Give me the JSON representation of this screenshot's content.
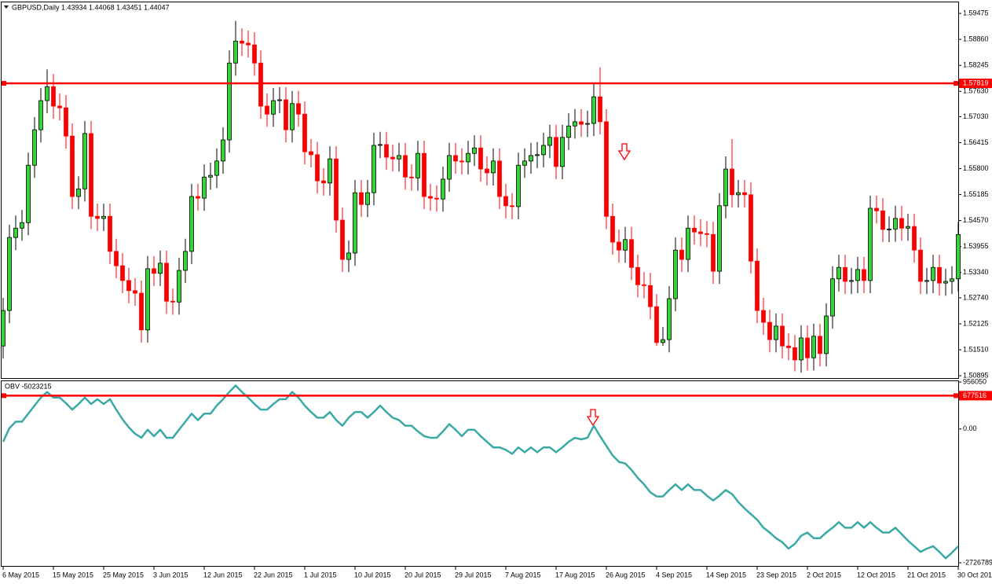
{
  "chart_data": [
    {
      "type": "candlestick",
      "title": "GBPUSD,Daily  1.43934 1.44068 1.43451 1.44047",
      "categories": [
        "6 May 2015",
        null,
        null,
        null,
        null,
        null,
        null,
        null,
        "15 May 2015",
        null,
        null,
        null,
        null,
        null,
        null,
        null,
        "25 May 2015",
        null,
        null,
        null,
        null,
        null,
        null,
        null,
        "3 Jun 2015",
        null,
        null,
        null,
        null,
        null,
        null,
        null,
        "12 Jun 2015",
        null,
        null,
        null,
        null,
        null,
        null,
        null,
        "22 Jun 2015",
        null,
        null,
        null,
        null,
        null,
        null,
        null,
        "1 Jul 2015",
        null,
        null,
        null,
        null,
        null,
        null,
        null,
        "10 Jul 2015",
        null,
        null,
        null,
        null,
        null,
        null,
        null,
        "20 Jul 2015",
        null,
        null,
        null,
        null,
        null,
        null,
        null,
        "29 Jul 2015",
        null,
        null,
        null,
        null,
        null,
        null,
        null,
        "7 Aug 2015",
        null,
        null,
        null,
        null,
        null,
        null,
        null,
        "17 Aug 2015",
        null,
        null,
        null,
        null,
        null,
        null,
        null,
        "26 Aug 2015",
        null,
        null,
        null,
        null,
        null,
        null,
        null,
        "4 Sep 2015",
        null,
        null,
        null,
        null,
        null,
        null,
        null,
        "14 Sep 2015",
        null,
        null,
        null,
        null,
        null,
        null,
        null,
        "23 Sep 2015",
        null,
        null,
        null,
        null,
        null,
        null,
        null,
        "2 Oct 2015",
        null,
        null,
        null,
        null,
        null,
        null,
        null,
        "12 Oct 2015",
        null,
        null,
        null,
        null,
        null,
        null,
        null,
        "21 Oct 2015",
        null,
        null,
        null,
        null,
        null,
        null,
        null,
        "30 Oct 2015"
      ],
      "open": [
        1.516,
        1.5244,
        1.5417,
        1.5439,
        1.5452,
        1.5588,
        1.5672,
        1.5741,
        1.5774,
        1.5728,
        1.5724,
        1.5657,
        1.5514,
        1.5532,
        1.5663,
        1.5467,
        1.5462,
        1.5467,
        1.5384,
        1.535,
        1.5315,
        1.5291,
        1.5285,
        1.5198,
        1.5343,
        1.5332,
        1.5356,
        1.5266,
        1.5264,
        1.5339,
        1.5384,
        1.5514,
        1.551,
        1.556,
        1.5564,
        1.5598,
        1.5648,
        1.583,
        1.5882,
        1.5877,
        1.5873,
        1.583,
        1.5728,
        1.5709,
        1.5741,
        1.5743,
        1.5672,
        1.5734,
        1.5709,
        1.562,
        1.5613,
        1.5551,
        1.5546,
        1.5603,
        1.5458,
        1.5365,
        1.538,
        1.5523,
        1.5495,
        1.5523,
        1.5635,
        1.5637,
        1.5607,
        1.5603,
        1.5611,
        1.556,
        1.5558,
        1.5616,
        1.5514,
        1.551,
        1.5508,
        1.5555,
        1.5611,
        1.5598,
        1.5596,
        1.5616,
        1.5629,
        1.5579,
        1.557,
        1.5598,
        1.5514,
        1.5492,
        1.549,
        1.5588,
        1.5598,
        1.5611,
        1.5613,
        1.5635,
        1.5654,
        1.5585,
        1.5654,
        1.5681,
        1.5691,
        1.5685,
        1.5687,
        1.575,
        1.5691,
        1.5467,
        1.5406,
        1.5387,
        1.5412,
        1.5346,
        1.5305,
        1.5303,
        1.5253,
        1.5168,
        1.5175,
        1.5272,
        1.5387,
        1.5365,
        1.5439,
        1.543,
        1.5426,
        1.5424,
        1.5337,
        1.5492,
        1.5579,
        1.5518,
        1.5523,
        1.5518,
        1.5361,
        1.5244,
        1.5216,
        1.5175,
        1.5207,
        1.516,
        1.5156,
        1.5127,
        1.5179,
        1.5132,
        1.5183,
        1.5142,
        1.5231,
        1.5319,
        1.5346,
        1.5313,
        1.5315,
        1.5341,
        1.5315,
        1.5486,
        1.548,
        1.5436,
        1.5437,
        1.5462,
        1.5439,
        1.5443,
        1.5387,
        1.5313,
        1.5315,
        1.5346,
        1.5309,
        1.5313,
        1.5319
      ],
      "high": [
        1.5274,
        1.5447,
        1.5469,
        1.5482,
        1.5618,
        1.5702,
        1.5771,
        1.5815,
        1.5804,
        1.5758,
        1.5754,
        1.5687,
        1.5562,
        1.5693,
        1.5693,
        1.5497,
        1.5497,
        1.5497,
        1.5414,
        1.538,
        1.5345,
        1.5321,
        1.5315,
        1.5373,
        1.5373,
        1.5386,
        1.5386,
        1.5296,
        1.5369,
        1.5414,
        1.5544,
        1.5544,
        1.559,
        1.5594,
        1.5628,
        1.5678,
        1.586,
        1.593,
        1.5912,
        1.5907,
        1.5903,
        1.586,
        1.5758,
        1.5771,
        1.5773,
        1.5773,
        1.5764,
        1.5764,
        1.5739,
        1.565,
        1.5643,
        1.5581,
        1.5633,
        1.5633,
        1.5488,
        1.541,
        1.5553,
        1.5553,
        1.5553,
        1.5665,
        1.5667,
        1.5667,
        1.5637,
        1.5641,
        1.5641,
        1.559,
        1.5646,
        1.5646,
        1.5544,
        1.554,
        1.5585,
        1.5641,
        1.5641,
        1.5628,
        1.5646,
        1.5659,
        1.5659,
        1.5609,
        1.5628,
        1.5628,
        1.5544,
        1.5522,
        1.5618,
        1.5628,
        1.5641,
        1.5643,
        1.5665,
        1.5684,
        1.5684,
        1.5684,
        1.5711,
        1.5721,
        1.5721,
        1.5717,
        1.578,
        1.582,
        1.5721,
        1.5497,
        1.5436,
        1.5442,
        1.5442,
        1.5376,
        1.5335,
        1.5333,
        1.5283,
        1.5205,
        1.5302,
        1.5417,
        1.5417,
        1.5469,
        1.5469,
        1.546,
        1.5456,
        1.5454,
        1.5522,
        1.5609,
        1.565,
        1.5553,
        1.5553,
        1.5548,
        1.5391,
        1.5274,
        1.5246,
        1.5237,
        1.5237,
        1.519,
        1.5186,
        1.5209,
        1.5209,
        1.5213,
        1.5213,
        1.5261,
        1.5349,
        1.5376,
        1.5376,
        1.5345,
        1.5371,
        1.5371,
        1.5516,
        1.5516,
        1.551,
        1.5467,
        1.5492,
        1.5492,
        1.5473,
        1.5473,
        1.5417,
        1.5345,
        1.5376,
        1.5376,
        1.5343,
        1.5349,
        1.5454
      ],
      "low": [
        1.513,
        1.5214,
        1.5387,
        1.5409,
        1.5422,
        1.5558,
        1.5642,
        1.5711,
        1.5698,
        1.5694,
        1.5627,
        1.5484,
        1.5484,
        1.5502,
        1.5437,
        1.5432,
        1.5432,
        1.5354,
        1.532,
        1.5285,
        1.5261,
        1.5255,
        1.5168,
        1.5168,
        1.5302,
        1.5302,
        1.5236,
        1.5234,
        1.5234,
        1.5309,
        1.5354,
        1.548,
        1.548,
        1.553,
        1.5534,
        1.5568,
        1.5618,
        1.58,
        1.5847,
        1.5843,
        1.58,
        1.5698,
        1.5679,
        1.5679,
        1.5711,
        1.5642,
        1.5642,
        1.5679,
        1.559,
        1.5583,
        1.5521,
        1.5516,
        1.5516,
        1.5428,
        1.5335,
        1.5335,
        1.535,
        1.5465,
        1.5465,
        1.5493,
        1.5605,
        1.5577,
        1.5573,
        1.5573,
        1.553,
        1.5528,
        1.5528,
        1.5484,
        1.548,
        1.5478,
        1.5478,
        1.5525,
        1.5568,
        1.5566,
        1.5566,
        1.5586,
        1.5549,
        1.554,
        1.554,
        1.5484,
        1.5462,
        1.546,
        1.546,
        1.5558,
        1.5568,
        1.5581,
        1.5583,
        1.5605,
        1.5555,
        1.5555,
        1.5624,
        1.5651,
        1.5655,
        1.5655,
        1.5657,
        1.5661,
        1.5437,
        1.5376,
        1.5357,
        1.5357,
        1.5316,
        1.5275,
        1.5273,
        1.5223,
        1.516,
        1.516,
        1.5145,
        1.5242,
        1.5335,
        1.5335,
        1.54,
        1.5396,
        1.5394,
        1.5307,
        1.5307,
        1.5462,
        1.5488,
        1.5488,
        1.5488,
        1.5331,
        1.5214,
        1.5186,
        1.5145,
        1.5145,
        1.513,
        1.5126,
        1.51,
        1.5097,
        1.5102,
        1.5102,
        1.5112,
        1.5112,
        1.5201,
        1.5289,
        1.5283,
        1.5283,
        1.5285,
        1.5285,
        1.5285,
        1.545,
        1.5406,
        1.5406,
        1.5407,
        1.5409,
        1.5409,
        1.5357,
        1.5283,
        1.5283,
        1.5285,
        1.5279,
        1.5279,
        1.5283,
        1.5289
      ],
      "close": [
        1.5244,
        1.5417,
        1.5439,
        1.5452,
        1.5588,
        1.5672,
        1.5741,
        1.5774,
        1.5728,
        1.5724,
        1.5657,
        1.5514,
        1.5532,
        1.5663,
        1.5467,
        1.5462,
        1.5467,
        1.5384,
        1.535,
        1.5315,
        1.5291,
        1.5285,
        1.5198,
        1.5343,
        1.5332,
        1.5356,
        1.5266,
        1.5264,
        1.5339,
        1.5384,
        1.5514,
        1.551,
        1.556,
        1.5564,
        1.5598,
        1.5648,
        1.583,
        1.5882,
        1.5877,
        1.5873,
        1.583,
        1.5728,
        1.5709,
        1.5741,
        1.5743,
        1.5672,
        1.5734,
        1.5709,
        1.562,
        1.5613,
        1.5551,
        1.5546,
        1.5603,
        1.5458,
        1.5365,
        1.538,
        1.5523,
        1.5495,
        1.5523,
        1.5635,
        1.5637,
        1.5607,
        1.5603,
        1.5611,
        1.556,
        1.5558,
        1.5616,
        1.5514,
        1.551,
        1.5508,
        1.5555,
        1.5611,
        1.5598,
        1.5596,
        1.5616,
        1.5629,
        1.5579,
        1.557,
        1.5598,
        1.5514,
        1.5492,
        1.549,
        1.5588,
        1.5598,
        1.5611,
        1.5613,
        1.5635,
        1.5654,
        1.5585,
        1.5654,
        1.5681,
        1.5691,
        1.5685,
        1.5687,
        1.575,
        1.5691,
        1.5467,
        1.5406,
        1.5387,
        1.5412,
        1.5346,
        1.5305,
        1.5303,
        1.5253,
        1.5168,
        1.5175,
        1.5272,
        1.5387,
        1.5365,
        1.5439,
        1.543,
        1.5426,
        1.5424,
        1.5337,
        1.5492,
        1.5579,
        1.5518,
        1.5523,
        1.5518,
        1.5361,
        1.5244,
        1.5216,
        1.5175,
        1.5207,
        1.516,
        1.5156,
        1.5127,
        1.5179,
        1.5132,
        1.5183,
        1.5142,
        1.5231,
        1.5319,
        1.5346,
        1.5313,
        1.5315,
        1.5341,
        1.5315,
        1.5486,
        1.548,
        1.5436,
        1.5437,
        1.5462,
        1.5439,
        1.5443,
        1.5387,
        1.5313,
        1.5315,
        1.5346,
        1.5309,
        1.5313,
        1.5319,
        1.5424
      ],
      "up_color": "#3cd23c",
      "down_color": "#ff0000",
      "ylim": [
        1.5084,
        1.597
      ],
      "yticks": [
        1.59475,
        {
          "value": 1.5886,
          "label": "1.58860"
        },
        1.58245,
        {
          "value": 1.5763,
          "label": "1.57630"
        },
        {
          "value": 1.5703,
          "label": "1.57030"
        },
        1.56415,
        {
          "value": 1.558,
          "label": "1.55800"
        },
        1.55185,
        {
          "value": 1.5457,
          "label": "1.54570"
        },
        1.53955,
        {
          "value": 1.5334,
          "label": "1.53340"
        },
        {
          "value": 1.5274,
          "label": "1.52740"
        },
        1.52125,
        {
          "value": 1.5151,
          "label": "1.51510"
        },
        1.50895
      ],
      "hline": 1.57819,
      "hline_color": "#ff0000"
    },
    {
      "type": "line",
      "title": "OBV -5023215",
      "color": "#3aa9a6",
      "values": [
        -262000,
        16000,
        147000,
        147000,
        311000,
        475000,
        638000,
        753000,
        638000,
        638000,
        524000,
        393000,
        507000,
        638000,
        507000,
        606000,
        507000,
        606000,
        393000,
        196000,
        33000,
        -98000,
        -180000,
        -16000,
        -147000,
        -16000,
        -180000,
        -180000,
        -16000,
        147000,
        311000,
        180000,
        311000,
        311000,
        475000,
        606000,
        753000,
        884000,
        753000,
        638000,
        507000,
        393000,
        393000,
        507000,
        606000,
        606000,
        753000,
        638000,
        475000,
        344000,
        229000,
        229000,
        344000,
        180000,
        65000,
        229000,
        344000,
        344000,
        229000,
        344000,
        475000,
        344000,
        229000,
        180000,
        65000,
        65000,
        -49000,
        -147000,
        -180000,
        -180000,
        -49000,
        98000,
        -16000,
        -147000,
        -16000,
        -16000,
        -147000,
        -262000,
        -376000,
        -376000,
        -426000,
        -507000,
        -376000,
        -475000,
        -376000,
        -475000,
        -376000,
        -376000,
        -475000,
        -376000,
        -262000,
        -180000,
        -213000,
        -180000,
        65000,
        -147000,
        -344000,
        -540000,
        -671000,
        -704000,
        -835000,
        -998000,
        -1129000,
        -1293000,
        -1375000,
        -1375000,
        -1244000,
        -1129000,
        -1244000,
        -1129000,
        -1244000,
        -1244000,
        -1359000,
        -1457000,
        -1359000,
        -1244000,
        -1326000,
        -1489000,
        -1620000,
        -1735000,
        -1850000,
        -2013000,
        -2111000,
        -2226000,
        -2308000,
        -2439000,
        -2341000,
        -2177000,
        -2111000,
        -2226000,
        -2226000,
        -2111000,
        -2013000,
        -1899000,
        -2013000,
        -2013000,
        -1899000,
        -2013000,
        -1899000,
        -2013000,
        -2111000,
        -2111000,
        -2013000,
        -2144000,
        -2275000,
        -2390000,
        -2504000,
        -2439000,
        -2390000,
        -2504000,
        -2635000,
        -2521000,
        -2390000
      ],
      "ylim": [
        -2726789,
        956050
      ],
      "yticks": [
        956050,
        {
          "value": 0,
          "label": "0.00"
        },
        -2726789
      ],
      "hline": 677516,
      "hline_color": "#ff0000"
    }
  ]
}
